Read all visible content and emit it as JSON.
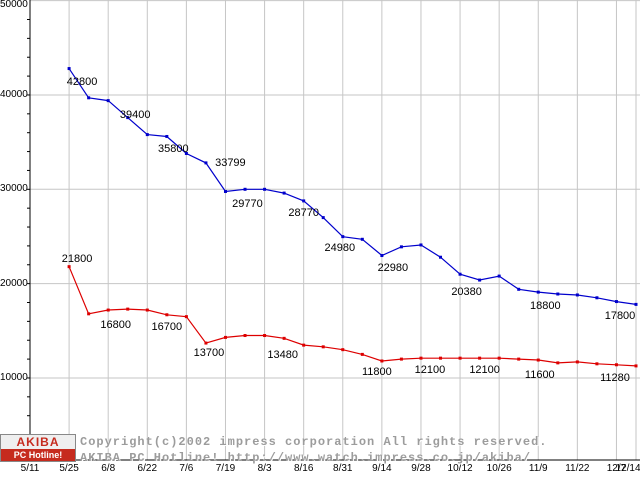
{
  "page": {
    "background": "#ffffff"
  },
  "watermark": {
    "line1": "Copyright(c)2002 impress corporation All rights reserved.",
    "line2": "AKIBA PC Hotline!  http://www.watch.impress.co.jp/akiba/"
  },
  "logo": {
    "top": "AKIBA",
    "bottom": "PC Hotline!"
  },
  "chart_data": {
    "type": "line",
    "title": "",
    "xlabel": "",
    "ylabel": "",
    "grid": true,
    "legend": "none",
    "colors": {
      "grid": "#c6c6c6",
      "axis": "#000000",
      "label": "#000000"
    },
    "x_axis": {
      "unit": "week",
      "tick_labels": [
        "5/11",
        "5/25",
        "6/8",
        "6/22",
        "7/6",
        "7/19",
        "8/3",
        "8/16",
        "8/31",
        "9/14",
        "9/28",
        "10/12",
        "10/26",
        "11/9",
        "11/22",
        "12/7",
        "12/14"
      ],
      "tick_weeks": [
        0,
        2,
        4,
        6,
        8,
        10,
        12,
        14,
        16,
        18,
        20,
        22,
        24,
        26,
        28,
        30,
        31
      ],
      "total_weeks": 31
    },
    "y_axis": {
      "min": 0,
      "max": 50000,
      "tick_values": [
        50000,
        40000,
        30000,
        20000,
        10000
      ],
      "tick_labels": [
        "50000",
        "40000",
        "30000",
        "20000",
        "10000"
      ],
      "minor_step": 2000
    },
    "series": [
      {
        "name": "price-high",
        "color": "#0000cc",
        "start_week": 2,
        "values": [
          42800,
          39700,
          39400,
          37600,
          35800,
          35600,
          33799,
          32800,
          29770,
          30000,
          30000,
          29600,
          28770,
          27000,
          24980,
          24700,
          22980,
          23900,
          24100,
          22800,
          21000,
          20380,
          20800,
          19400,
          19100,
          18900,
          18800,
          18500,
          18100,
          17800
        ],
        "point_labels": [
          {
            "text": "42800",
            "week": 2,
            "dx": 13,
            "dy": 7
          },
          {
            "text": "39400",
            "week": 4,
            "dx": 27,
            "dy": 8
          },
          {
            "text": "35800",
            "week": 6,
            "dx": 26,
            "dy": 8
          },
          {
            "text": "33799",
            "week": 8,
            "dx": 44,
            "dy": 4
          },
          {
            "text": "29770",
            "week": 10,
            "dx": 22,
            "dy": 7
          },
          {
            "text": "28770",
            "week": 14,
            "dx": 0,
            "dy": 6
          },
          {
            "text": "24980",
            "week": 16,
            "dx": -3,
            "dy": 5
          },
          {
            "text": "22980",
            "week": 18,
            "dx": 11,
            "dy": 6
          },
          {
            "text": "20380",
            "week": 23,
            "dx": -13,
            "dy": 6
          },
          {
            "text": "18800",
            "week": 28,
            "dx": -32,
            "dy": 5
          },
          {
            "text": "17800",
            "week": 31,
            "dx": -16,
            "dy": 6
          }
        ]
      },
      {
        "name": "price-low",
        "color": "#dd0000",
        "start_week": 2,
        "values": [
          21800,
          16800,
          17200,
          17300,
          17200,
          16700,
          16500,
          13700,
          14300,
          14500,
          14500,
          14200,
          13480,
          13300,
          13000,
          12500,
          11800,
          12000,
          12100,
          12100,
          12100,
          12100,
          12100,
          12000,
          11900,
          11600,
          11700,
          11500,
          11400,
          11280
        ],
        "point_labels": [
          {
            "text": "21800",
            "week": 2,
            "dx": 8,
            "dy": -14
          },
          {
            "text": "16800",
            "week": 3,
            "dx": 27,
            "dy": 5
          },
          {
            "text": "16700",
            "week": 7,
            "dx": 0,
            "dy": 6
          },
          {
            "text": "13700",
            "week": 9,
            "dx": 3,
            "dy": 4
          },
          {
            "text": "13480",
            "week": 14,
            "dx": -21,
            "dy": 4
          },
          {
            "text": "11800",
            "week": 18,
            "dx": -5,
            "dy": 5
          },
          {
            "text": "12100",
            "week": 20,
            "dx": 9,
            "dy": 6
          },
          {
            "text": "12100",
            "week": 23,
            "dx": 5,
            "dy": 6
          },
          {
            "text": "11600",
            "week": 27,
            "dx": -18,
            "dy": 6
          },
          {
            "text": "11280",
            "week": 31,
            "dx": -21,
            "dy": 6
          }
        ]
      }
    ]
  }
}
